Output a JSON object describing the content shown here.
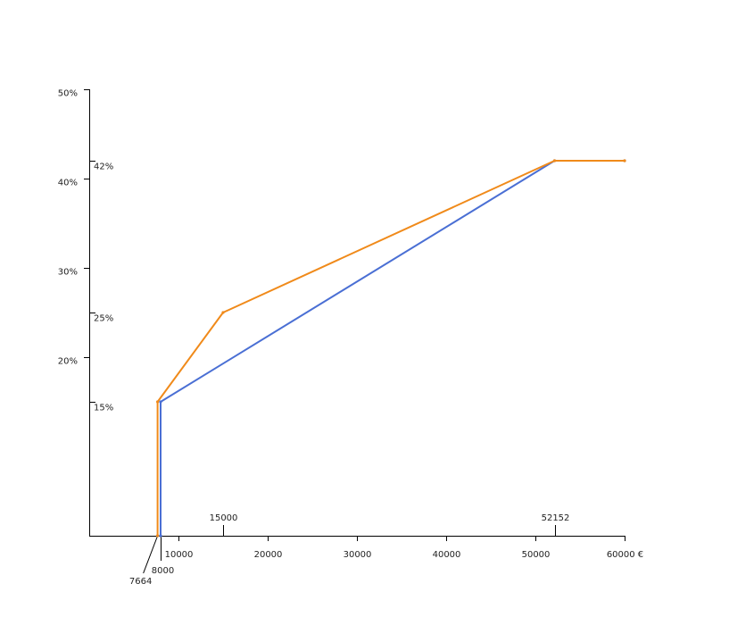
{
  "chart_data": {
    "type": "line",
    "title": "",
    "xlabel": "",
    "ylabel": "",
    "xlim": [
      0,
      60000
    ],
    "ylim": [
      0,
      50
    ],
    "grid": false,
    "legend": "none",
    "x_ticks": [
      {
        "value": 10000,
        "label": "10000"
      },
      {
        "value": 20000,
        "label": "20000"
      },
      {
        "value": 30000,
        "label": "30000"
      },
      {
        "value": 40000,
        "label": "40000"
      },
      {
        "value": 50000,
        "label": "50000"
      },
      {
        "value": 60000,
        "label": "60000 €"
      }
    ],
    "y_ticks": [
      {
        "value": 20,
        "label": "20%"
      },
      {
        "value": 30,
        "label": "30%"
      },
      {
        "value": 40,
        "label": "40%"
      },
      {
        "value": 50,
        "label": "50%"
      }
    ],
    "x_marks_above": [
      {
        "value": 15000,
        "label": "15000"
      },
      {
        "value": 52152,
        "label": "52152"
      }
    ],
    "x_marks_below": [
      {
        "value": 7664,
        "label": "7664"
      },
      {
        "value": 8000,
        "label": "8000"
      }
    ],
    "y_marks": [
      {
        "value": 15,
        "label": "15%"
      },
      {
        "value": 25,
        "label": "25%"
      },
      {
        "value": 42,
        "label": "42%"
      }
    ],
    "series": [
      {
        "color": "#4a6fd4",
        "x": [
          8000,
          8000,
          52152,
          60000
        ],
        "y": [
          0,
          15,
          42,
          42
        ]
      },
      {
        "color": "#f08a1a",
        "x": [
          7664,
          7664,
          15000,
          52152,
          60000
        ],
        "y": [
          0,
          15,
          25,
          42,
          42
        ]
      }
    ]
  }
}
